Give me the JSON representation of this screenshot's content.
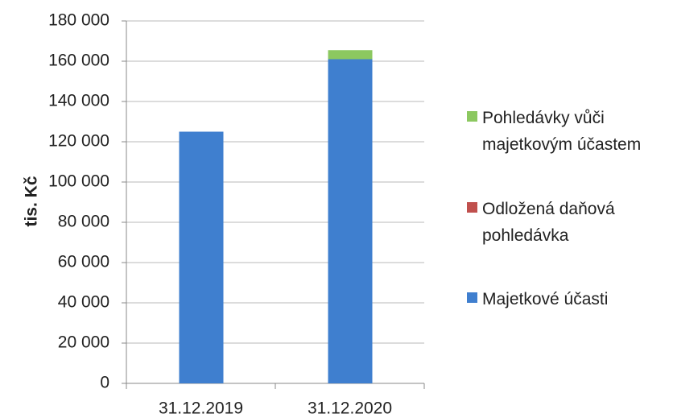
{
  "chart_data": {
    "type": "stacked_bar",
    "y_label": "tis. Kč",
    "categories": [
      "31.12.2019",
      "31.12.2020"
    ],
    "series": [
      {
        "name": "Majetkové účasti",
        "color": "#3f7fcf",
        "values": [
          125000,
          161000
        ]
      },
      {
        "name": "Odložená daňová pohledávka",
        "color": "#c0504d",
        "values": [
          0,
          0
        ]
      },
      {
        "name": "Pohledávky vůči majetkovým účastem",
        "color": "#8cc860",
        "values": [
          0,
          4500
        ]
      }
    ],
    "ylim": [
      0,
      180000
    ],
    "yticks": [
      0,
      {
        "value": 20000,
        "label": "20 000"
      },
      {
        "value": 40000,
        "label": "40 000"
      },
      {
        "value": 60000,
        "label": "60 000"
      },
      {
        "value": 80000,
        "label": "80 000"
      },
      {
        "value": 100000,
        "label": "100 000"
      },
      {
        "value": 120000,
        "label": "120 000"
      },
      {
        "value": 140000,
        "label": "140 000"
      },
      {
        "value": 160000,
        "label": "160 000"
      },
      {
        "value": 180000,
        "label": "180 000"
      }
    ],
    "grid": true,
    "legend": "right"
  }
}
